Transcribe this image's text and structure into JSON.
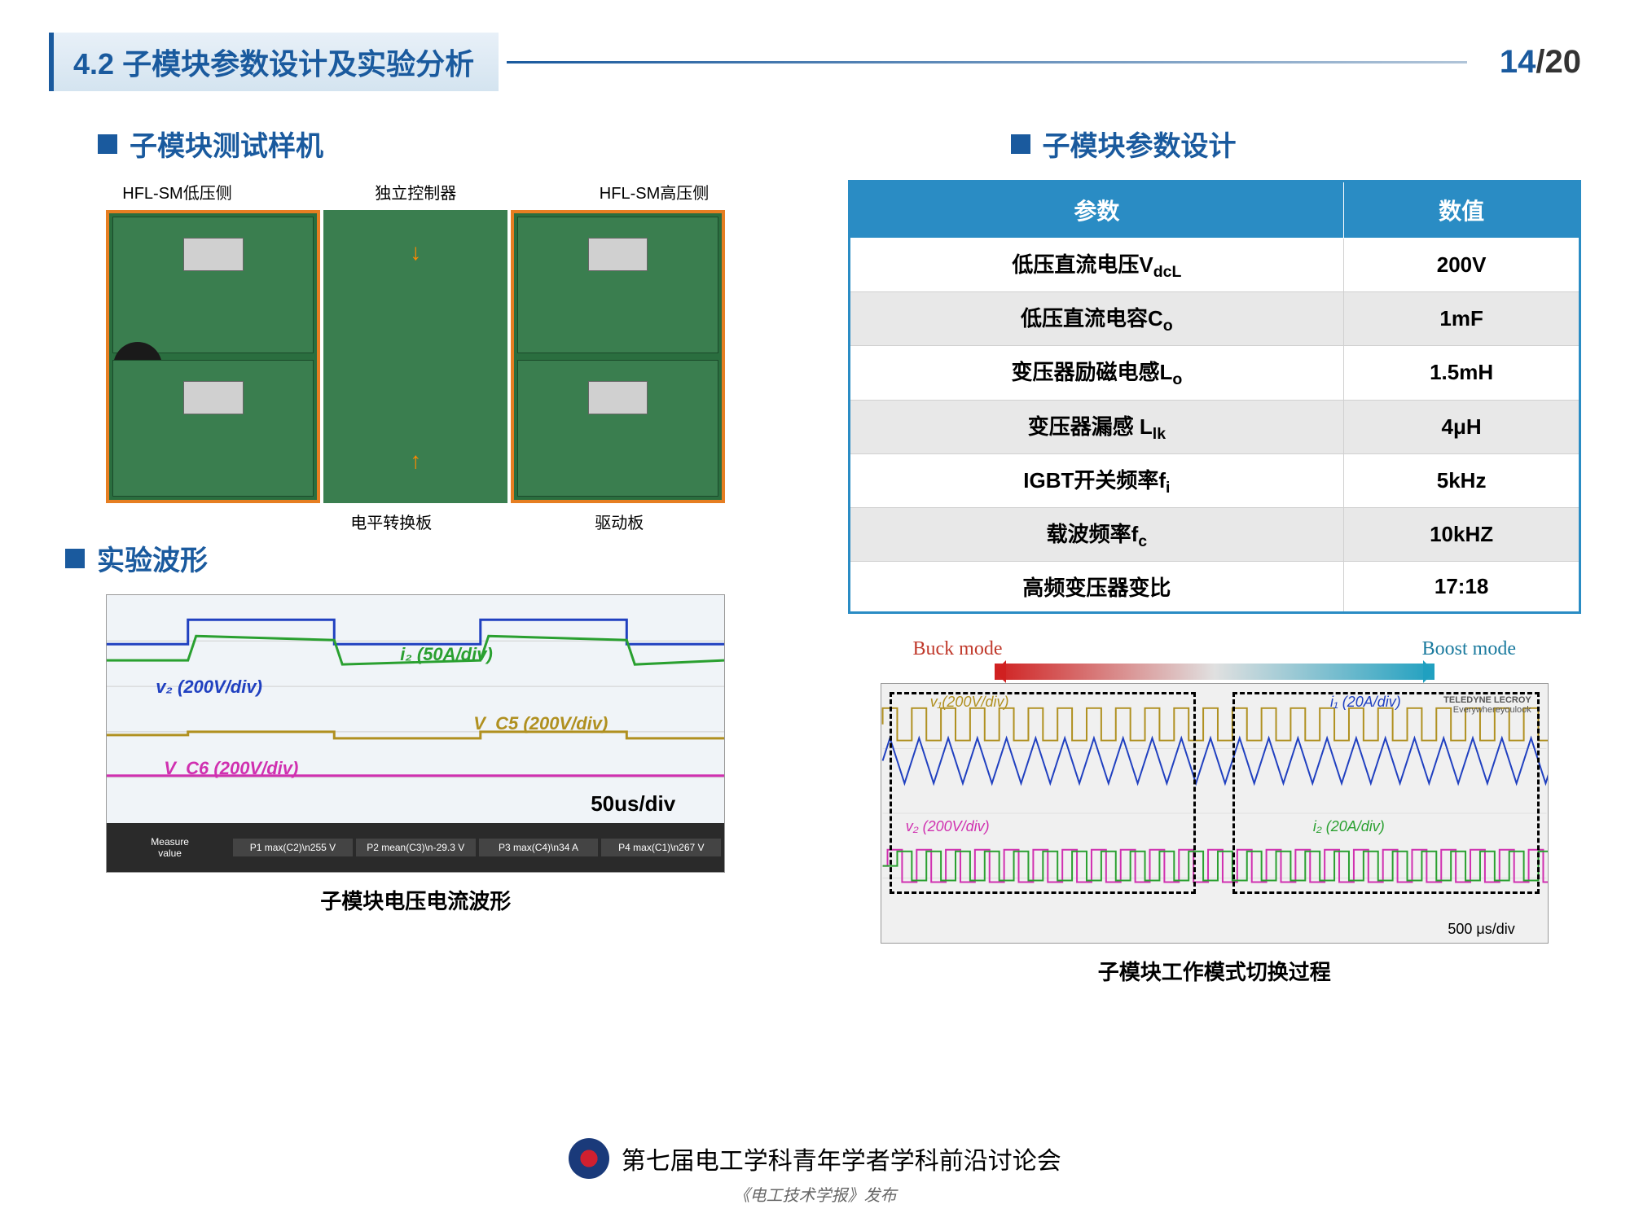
{
  "header": {
    "section_num": "4.2",
    "title": "子模块参数设计及实验分析",
    "page_current": "14",
    "page_total": "/20"
  },
  "left": {
    "section1_title": "子模块测试样机",
    "pcb": {
      "label_top_left": "HFL-SM低压侧",
      "label_top_mid": "独立控制器",
      "label_top_right": "HFL-SM高压侧",
      "label_bot_mid": "电平转换板",
      "label_bot_right": "驱动板",
      "left_border_color": "#e67e22",
      "right_border_color": "#e67e22",
      "pcb_color": "#3a7e4f"
    },
    "section2_title": "实验波形",
    "waveform1": {
      "labels": {
        "i2": "i₂ (50A/div)",
        "v2": "v₂ (200V/div)",
        "vc5": "V_C5 (200V/div)",
        "vc6": "V_C6  (200V/div)",
        "timediv": "50us/div"
      },
      "colors": {
        "i2": "#2aa030",
        "v2": "#2040c0",
        "vc5": "#b09020",
        "vc6": "#d030b0",
        "bg": "#f0f4f8"
      },
      "meters": [
        "P1 max(C2)\\n255 V",
        "P2 mean(C3)\\n-29.3 V",
        "P3 max(C4)\\n34 A",
        "P4 max(C1)\\n267 V"
      ],
      "caption": "子模块电压电流波形"
    }
  },
  "right": {
    "section1_title": "子模块参数设计",
    "table": {
      "header_bg": "#2a8cc4",
      "header_fg": "#ffffff",
      "cols": [
        "参数",
        "数值"
      ],
      "rows": [
        {
          "param": "低压直流电压V",
          "sub": "dcL",
          "value": "200V"
        },
        {
          "param": "低压直流电容C",
          "sub": "o",
          "value": "1mF"
        },
        {
          "param": "变压器励磁电感L",
          "sub": "o",
          "value": "1.5mH"
        },
        {
          "param": "变压器漏感 L",
          "sub": "lk",
          "value": "4μH"
        },
        {
          "param": "IGBT开关频率f",
          "sub": "i",
          "value": "5kHz"
        },
        {
          "param": "载波频率f",
          "sub": "c",
          "value": "10kHZ"
        },
        {
          "param": "高频变压器变比",
          "sub": "",
          "value": "17:18"
        }
      ]
    },
    "waveform2": {
      "buck_label": "Buck mode",
      "boost_label": "Boost mode",
      "labels": {
        "v1": "v₁(200V/div)",
        "i1": "i₁ (20A/div)",
        "v2": "v₂ (200V/div)",
        "i2": "i₂ (20A/div)",
        "timediv": "500 μs/div"
      },
      "colors": {
        "v1": "#b09020",
        "i1": "#2040c0",
        "v2": "#d030b0",
        "i2": "#2aa030"
      },
      "brand": "TELEDYNE LECROY",
      "brand_sub": "Everywhereyoulook",
      "caption": "子模块工作模式切换过程"
    }
  },
  "footer": {
    "conference": "第七届电工学科青年学者学科前沿讨论会",
    "journal": "《电工技术学报》发布"
  }
}
